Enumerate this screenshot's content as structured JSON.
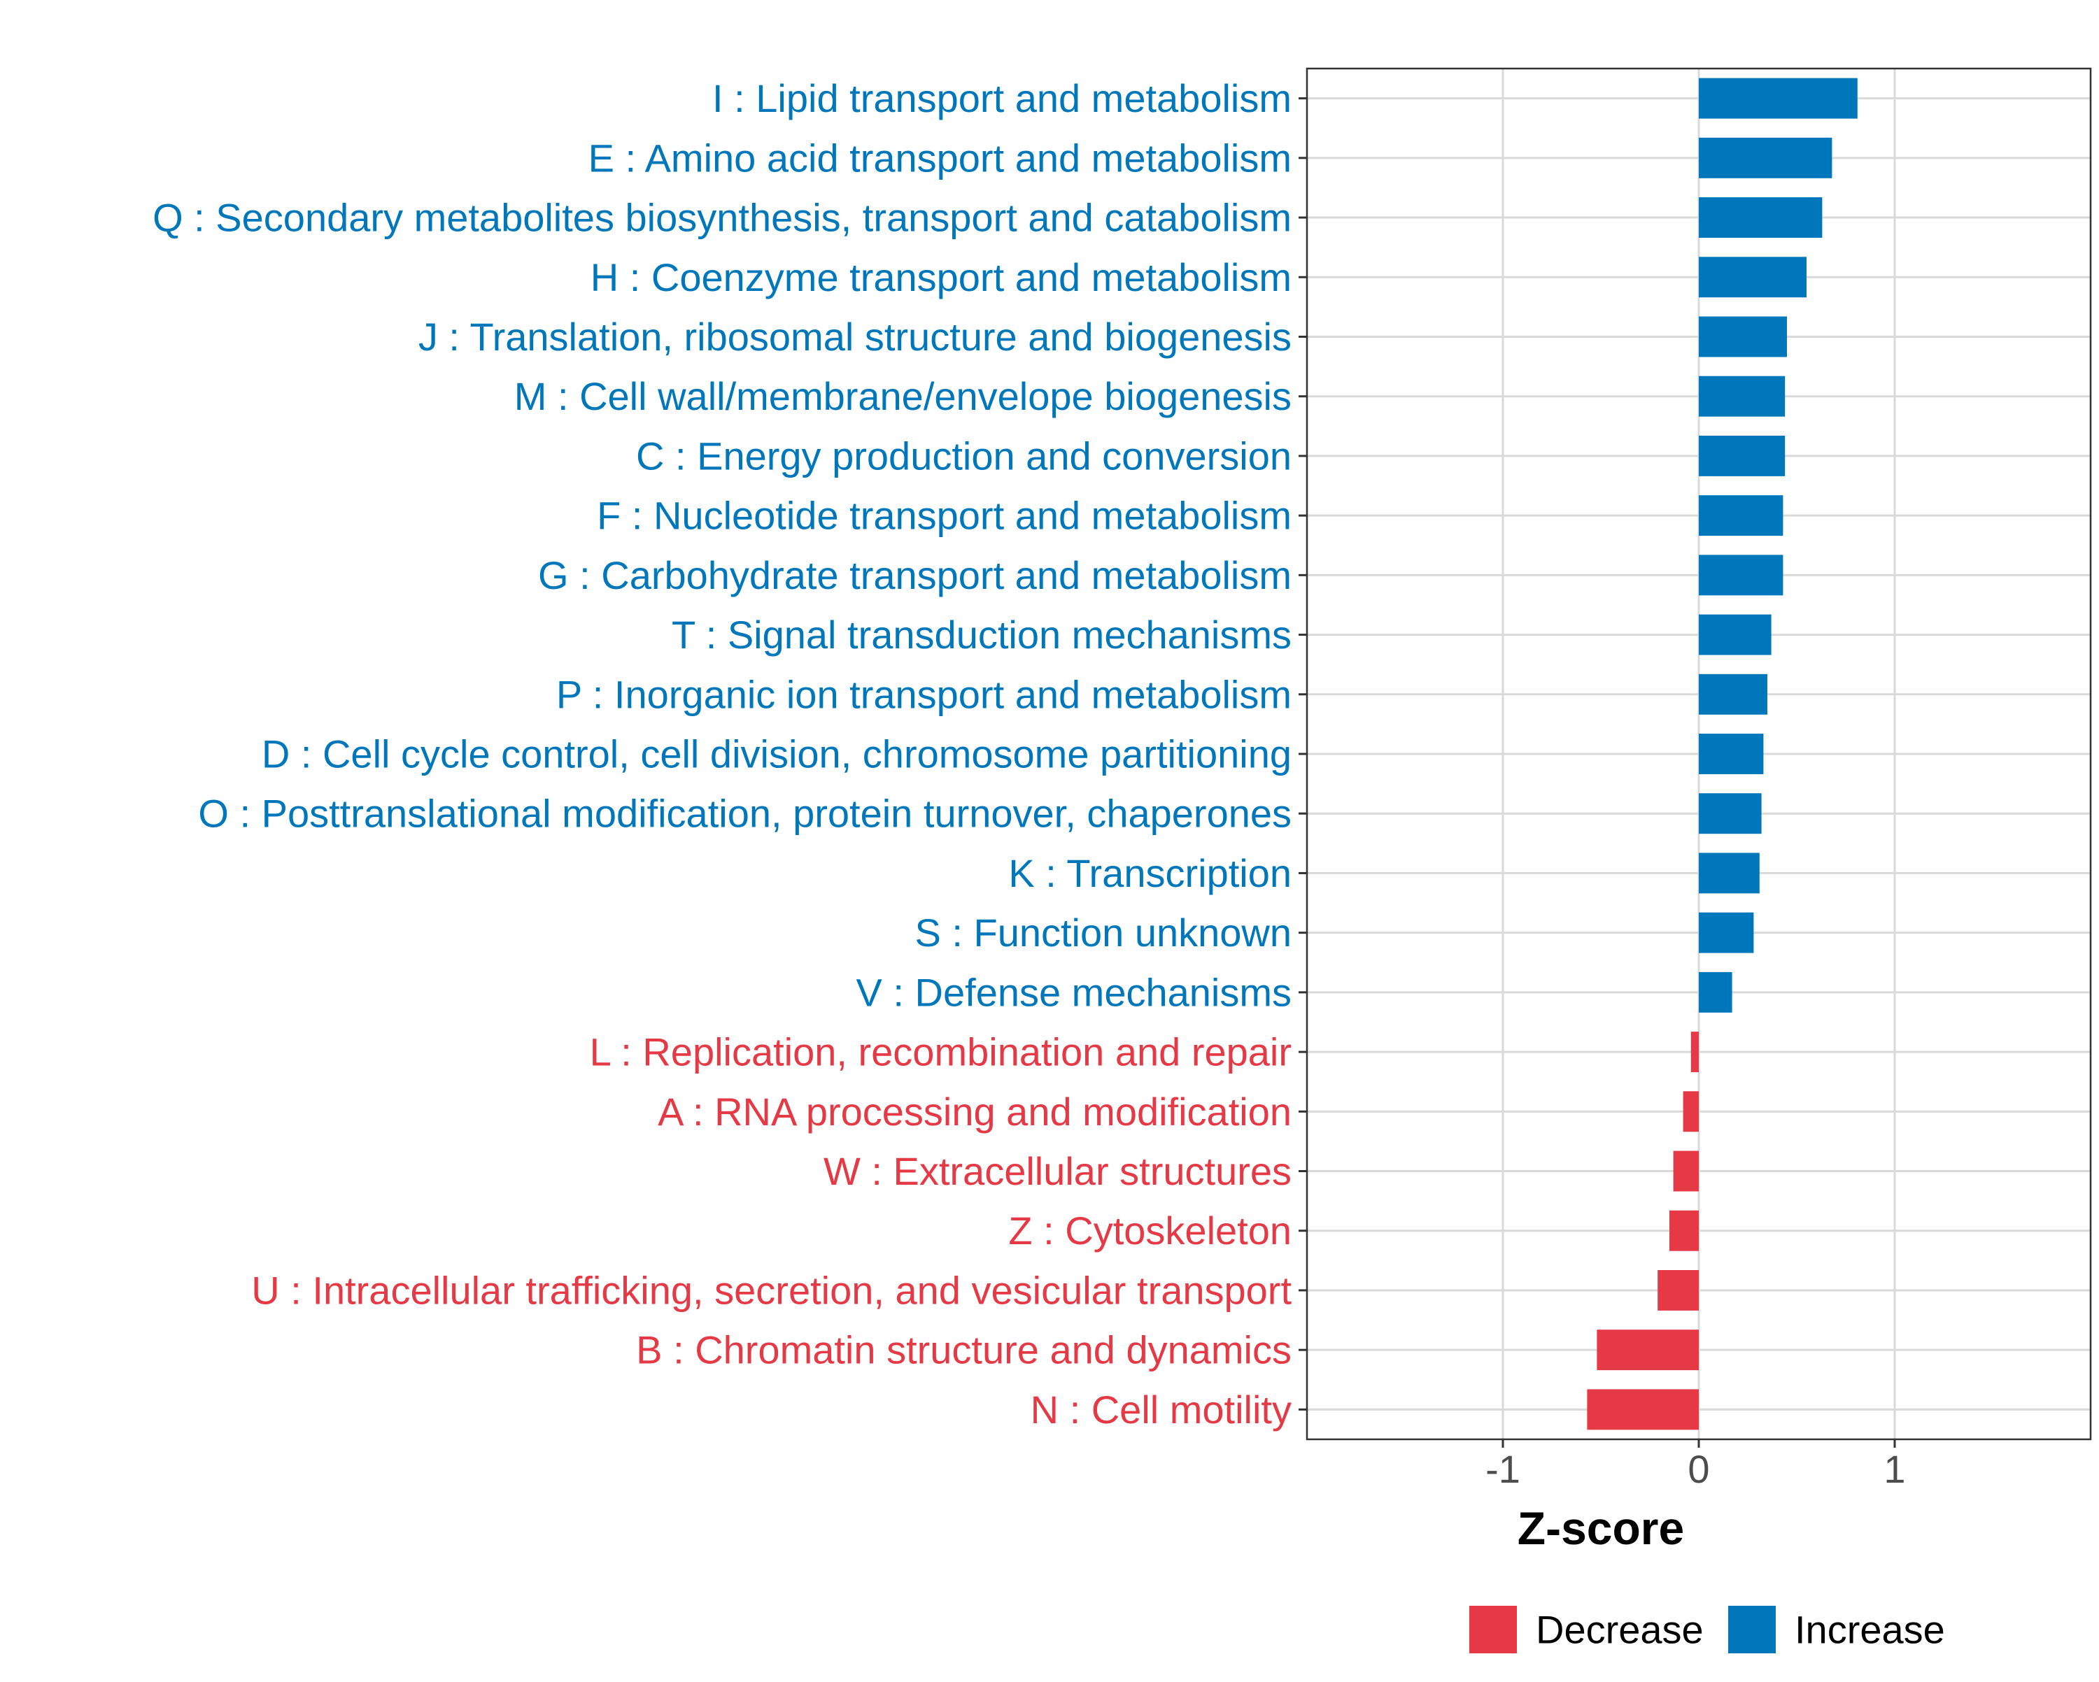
{
  "chart_data": {
    "type": "bar",
    "orientation": "horizontal",
    "title": "",
    "xlabel": "Z-score",
    "ylabel": "",
    "xlim": [
      -2,
      2
    ],
    "x_ticks": [
      -1,
      0,
      1
    ],
    "x_tick_labels": [
      "-1",
      "0",
      "1"
    ],
    "grid": true,
    "legend_position": "bottom",
    "colors": {
      "Increase": "#0077bb",
      "Decrease": "#e63946"
    },
    "legend": [
      {
        "label": "Decrease",
        "color": "#e63946"
      },
      {
        "label": "Increase",
        "color": "#0077bb"
      }
    ],
    "categories": [
      "I : Lipid transport and metabolism",
      "E : Amino acid transport and metabolism",
      "Q : Secondary metabolites biosynthesis, transport and catabolism",
      "H : Coenzyme transport and metabolism",
      "J : Translation, ribosomal structure and biogenesis",
      "M : Cell wall/membrane/envelope biogenesis",
      "C : Energy production and conversion",
      "F : Nucleotide transport and metabolism",
      "G : Carbohydrate transport and metabolism",
      "T : Signal transduction mechanisms",
      "P : Inorganic ion transport and metabolism",
      "D : Cell cycle control, cell division, chromosome partitioning",
      "O : Posttranslational modification, protein turnover, chaperones",
      "K : Transcription",
      "S : Function unknown",
      "V : Defense mechanisms",
      "L : Replication, recombination and repair",
      "A : RNA processing and modification",
      "W : Extracellular structures",
      "Z : Cytoskeleton",
      "U : Intracellular trafficking, secretion, and vesicular transport",
      "B : Chromatin structure and dynamics",
      "N : Cell motility"
    ],
    "values": [
      0.81,
      0.68,
      0.63,
      0.55,
      0.45,
      0.44,
      0.44,
      0.43,
      0.43,
      0.37,
      0.35,
      0.33,
      0.32,
      0.31,
      0.28,
      0.17,
      -0.04,
      -0.08,
      -0.13,
      -0.15,
      -0.21,
      -0.52,
      -0.57
    ],
    "groups": [
      "Increase",
      "Increase",
      "Increase",
      "Increase",
      "Increase",
      "Increase",
      "Increase",
      "Increase",
      "Increase",
      "Increase",
      "Increase",
      "Increase",
      "Increase",
      "Increase",
      "Increase",
      "Increase",
      "Decrease",
      "Decrease",
      "Decrease",
      "Decrease",
      "Decrease",
      "Decrease",
      "Decrease"
    ]
  }
}
